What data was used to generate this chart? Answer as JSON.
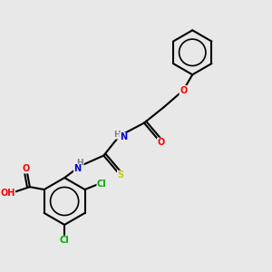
{
  "background_color": "#e8e8e8",
  "bond_color": "#000000",
  "atom_colors": {
    "O": "#ff0000",
    "N": "#0000cc",
    "S": "#cccc00",
    "Cl": "#00aa00",
    "C": "#000000",
    "H": "#808080"
  },
  "figsize": [
    3.0,
    3.0
  ],
  "dpi": 100
}
